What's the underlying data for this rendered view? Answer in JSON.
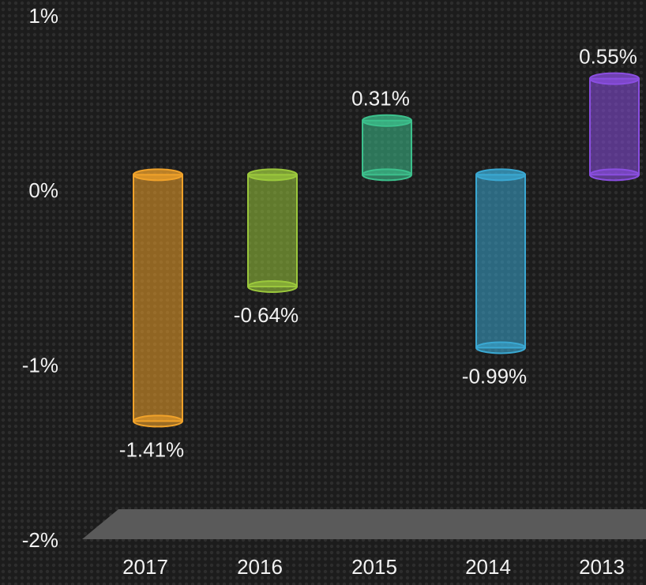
{
  "chart_data": {
    "type": "bar",
    "categories": [
      "2017",
      "2016",
      "2015",
      "2014",
      "2013"
    ],
    "values": [
      -1.41,
      -0.64,
      0.31,
      -0.99,
      0.55
    ],
    "value_labels": [
      "-1.41%",
      "-0.64%",
      "0.31%",
      "-0.99%",
      "0.55%"
    ],
    "colors": [
      "#f0a22a",
      "#9bc83c",
      "#3cc08c",
      "#3aa8d2",
      "#8a4ee0"
    ],
    "ylim": [
      -2,
      1
    ],
    "yticks": [
      {
        "value": -2,
        "label": "-2%"
      },
      {
        "value": -1,
        "label": "-1%"
      },
      {
        "value": 0,
        "label": "0%"
      },
      {
        "value": 1,
        "label": "1%"
      }
    ]
  }
}
